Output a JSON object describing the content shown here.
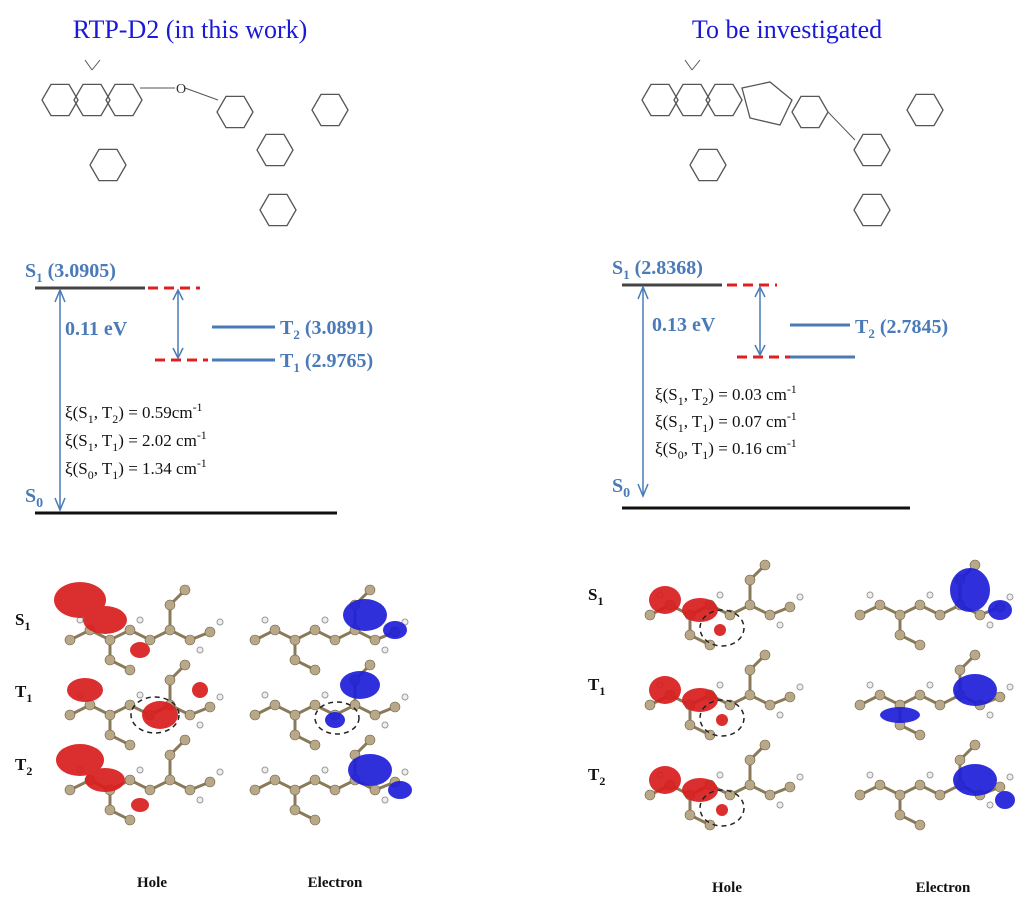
{
  "panels": [
    {
      "title": "RTP-D2 (in this work)",
      "s1": {
        "symbol": "S",
        "sub": "1",
        "energy": "(3.0905)"
      },
      "t2": {
        "symbol": "T",
        "sub": "2",
        "energy": "(3.0891)"
      },
      "t1": {
        "symbol": "T",
        "sub": "1",
        "energy": "(2.9765)"
      },
      "s0": {
        "symbol": "S",
        "sub": "0"
      },
      "gap": "0.11 eV",
      "soc": [
        [
          "ξ(S",
          "1",
          ", T",
          "2",
          ") = 0.59cm",
          "-1"
        ],
        [
          "ξ(S",
          "1",
          ", T",
          "1",
          ") = 2.02 cm",
          "-1"
        ],
        [
          "ξ(S",
          "0",
          ", T",
          "1",
          ") = 1.34 cm",
          "-1"
        ]
      ],
      "orbital_rows": [
        {
          "symbol": "S",
          "sub": "1"
        },
        {
          "symbol": "T",
          "sub": "1"
        },
        {
          "symbol": "T",
          "sub": "2"
        }
      ],
      "orbital_columns": [
        "Hole",
        "Electron"
      ]
    },
    {
      "title": "To be investigated",
      "s1": {
        "symbol": "S",
        "sub": "1",
        "energy": "(2.8368)"
      },
      "t2": {
        "symbol": "T",
        "sub": "2",
        "energy": "(2.7845)"
      },
      "s0": {
        "symbol": "S",
        "sub": "0"
      },
      "gap": "0.13 eV",
      "soc": [
        [
          "ξ(S",
          "1",
          ", T",
          "2",
          ") = 0.03 cm",
          "-1"
        ],
        [
          "ξ(S",
          "1",
          ", T",
          "1",
          ") = 0.07 cm",
          "-1"
        ],
        [
          "ξ(S",
          "0",
          ", T",
          "1",
          ") = 0.16 cm",
          "-1"
        ]
      ],
      "orbital_rows": [
        {
          "symbol": "S",
          "sub": "1"
        },
        {
          "symbol": "T",
          "sub": "1"
        },
        {
          "symbol": "T",
          "sub": "2"
        }
      ],
      "orbital_columns": [
        "Hole",
        "Electron"
      ]
    }
  ]
}
